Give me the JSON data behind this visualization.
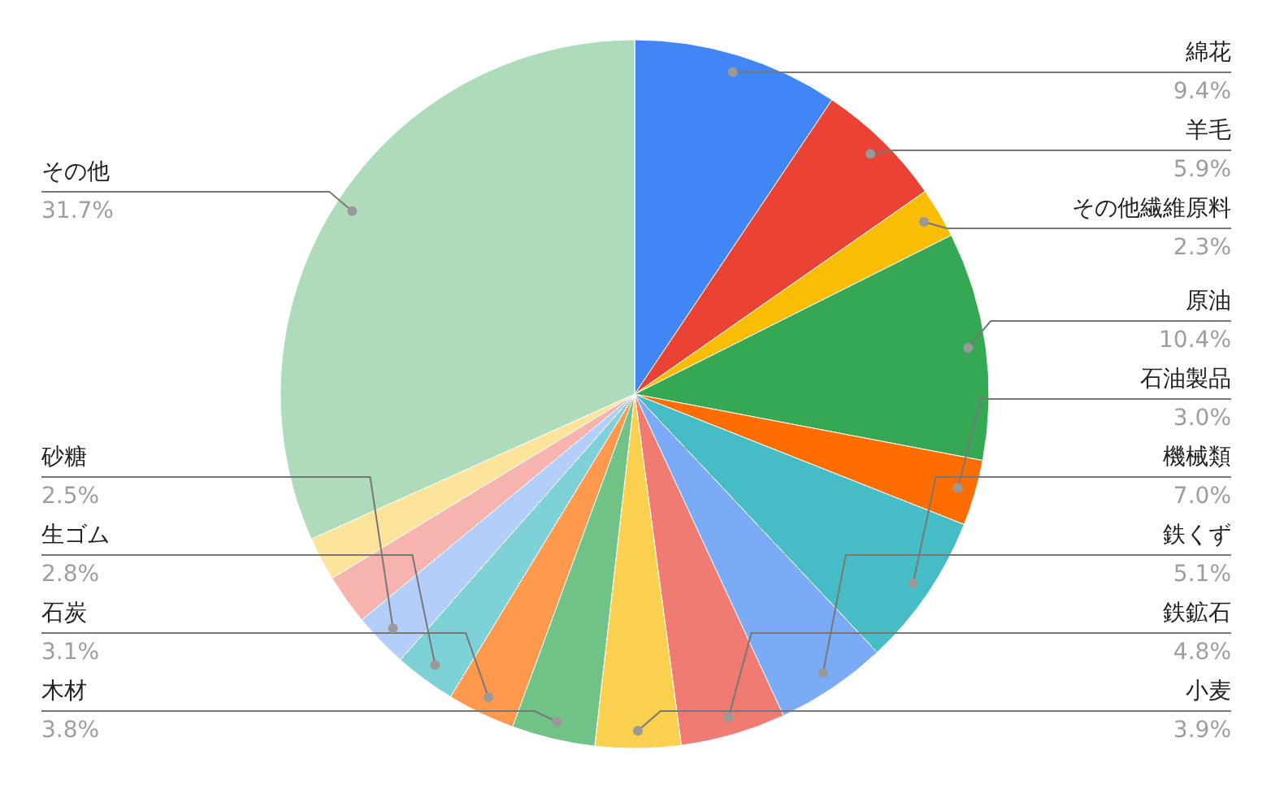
{
  "chart_data": {
    "type": "pie",
    "categories": [
      "綿花",
      "羊毛",
      "その他繊維原料",
      "原油",
      "石油製品",
      "機械類",
      "鉄くず",
      "鉄鉱石",
      "小麦",
      "木材",
      "石炭",
      "生ゴム",
      "砂糖",
      null,
      null,
      "その他"
    ],
    "values": [
      9.4,
      5.9,
      2.3,
      10.4,
      3.0,
      7.0,
      5.1,
      4.8,
      3.9,
      3.8,
      3.1,
      2.8,
      2.5,
      2.3,
      2.0,
      31.7
    ],
    "value_labels": [
      "9.4%",
      "5.9%",
      "2.3%",
      "10.4%",
      "3.0%",
      "7.0%",
      "5.1%",
      "4.8%",
      "3.9%",
      "3.8%",
      "3.1%",
      "2.8%",
      "2.5%",
      null,
      null,
      "31.7%"
    ],
    "colors": [
      "#4285f4",
      "#ea4335",
      "#fbbc04",
      "#34a853",
      "#ff6d01",
      "#46bdc6",
      "#7baaf7",
      "#f07b72",
      "#fcd04f",
      "#71c287",
      "#ff994d",
      "#7ed1d7",
      "#b3cefb",
      "#f7b4ae",
      "#fde49b",
      "#aedcba"
    ]
  }
}
